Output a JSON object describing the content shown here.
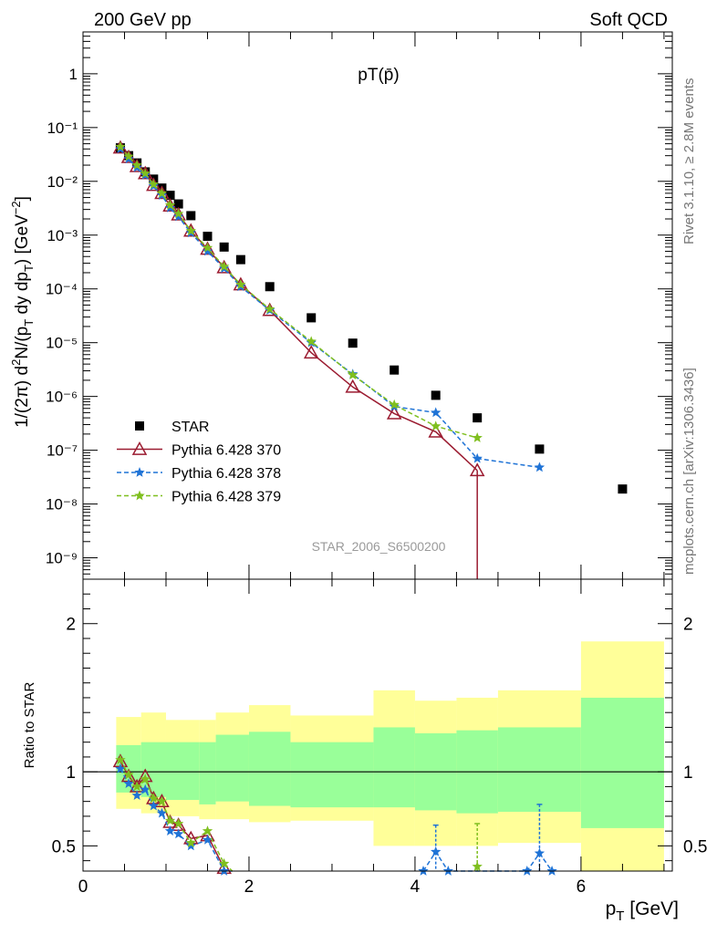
{
  "header": {
    "left": "200 GeV pp",
    "right": "Soft QCD"
  },
  "side_labels": {
    "rivet": "Rivet 3.1.10, ≥ 2.8M events",
    "mcplots": "mcplots.cern.ch [arXiv:1306.3436]"
  },
  "chart_data": [
    {
      "type": "scatter",
      "title": "pT(p̄)",
      "watermark": "STAR_2006_S6500200",
      "ylabel": "1/(2π) d²N/(p_T dy dp_T) [GeV⁻²]",
      "ylabel_parts": {
        "pre": "1/(2π) d",
        "sup2": "2",
        "mid": "N/(p",
        "subT1": "T",
        "mid2": " dy dp",
        "subT2": "T",
        "post": ") [GeV",
        "supm2": "−2",
        "end": "]"
      },
      "yscale": "log",
      "ylim": [
        4e-10,
        6
      ],
      "xlim": [
        0,
        7.1
      ],
      "y_tick_labels": [
        "10⁻⁹",
        "10⁻⁸",
        "10⁻⁷",
        "10⁻⁶",
        "10⁻⁵",
        "10⁻⁴",
        "10⁻³",
        "10⁻²",
        "10⁻¹",
        "1"
      ],
      "legend_position": "lower-left",
      "series": [
        {
          "name": "STAR",
          "color": "#000000",
          "marker": "square",
          "x": [
            0.45,
            0.55,
            0.65,
            0.75,
            0.85,
            0.95,
            1.05,
            1.15,
            1.3,
            1.5,
            1.7,
            1.9,
            2.25,
            2.75,
            3.25,
            3.75,
            4.25,
            4.75,
            5.5,
            6.5
          ],
          "y": [
            0.042,
            0.03,
            0.022,
            0.015,
            0.011,
            0.0075,
            0.0055,
            0.0038,
            0.0023,
            0.00095,
            0.0006,
            0.00035,
            0.00011,
            2.9e-05,
            9.8e-06,
            3.1e-06,
            1.05e-06,
            4e-07,
            1.05e-07,
            1.9e-08
          ]
        },
        {
          "name": "Pythia 6.428 370",
          "color": "#9b1b30",
          "marker": "triangle-open",
          "line": "solid",
          "x": [
            0.45,
            0.55,
            0.65,
            0.75,
            0.85,
            0.95,
            1.05,
            1.15,
            1.3,
            1.5,
            1.7,
            1.9,
            2.25,
            2.75,
            3.25,
            3.75,
            4.25,
            4.75
          ],
          "y": [
            0.042,
            0.028,
            0.019,
            0.014,
            0.0085,
            0.006,
            0.0035,
            0.0024,
            0.0012,
            0.00055,
            0.00025,
            0.00012,
            4e-05,
            6.5e-06,
            1.5e-06,
            4.8e-07,
            2.2e-07,
            4.2e-08
          ]
        },
        {
          "name": "Pythia 6.428 378",
          "color": "#1f73d6",
          "marker": "star",
          "line": "dashed",
          "x": [
            0.45,
            0.55,
            0.65,
            0.75,
            0.85,
            0.95,
            1.05,
            1.15,
            1.3,
            1.5,
            1.7,
            1.9,
            2.25,
            2.75,
            3.25,
            3.75,
            4.25,
            4.75,
            5.5
          ],
          "y": [
            0.04,
            0.026,
            0.018,
            0.013,
            0.0082,
            0.0055,
            0.0032,
            0.0022,
            0.0011,
            0.0005,
            0.00024,
            0.00011,
            4e-05,
            1e-05,
            2.6e-06,
            6.5e-07,
            5e-07,
            7e-08,
            4.8e-08
          ]
        },
        {
          "name": "Pythia 6.428 379",
          "color": "#7fbf1f",
          "marker": "star",
          "line": "dashed",
          "x": [
            0.45,
            0.55,
            0.65,
            0.75,
            0.85,
            0.95,
            1.05,
            1.15,
            1.3,
            1.5,
            1.7,
            1.9,
            2.25,
            2.75,
            3.25,
            3.75,
            4.25,
            4.75
          ],
          "y": [
            0.044,
            0.029,
            0.02,
            0.014,
            0.0088,
            0.006,
            0.0036,
            0.0025,
            0.0012,
            0.00058,
            0.00026,
            0.00012,
            4.2e-05,
            1.05e-05,
            2.5e-06,
            7e-07,
            2.8e-07,
            1.7e-07
          ]
        }
      ]
    },
    {
      "type": "scatter",
      "ylabel": "Ratio to STAR",
      "xlabel": "p_T [GeV]",
      "xlabel_parts": {
        "p": "p",
        "sub": "T",
        "rest": " [GeV]"
      },
      "xlim": [
        0,
        7.1
      ],
      "ylim": [
        0.33,
        2.3
      ],
      "x_tick_labels": [
        "0",
        "2",
        "4",
        "6"
      ],
      "y_tick_labels": [
        "0.5",
        "1",
        "2"
      ],
      "bands": {
        "edges": [
          0.4,
          0.7,
          1.0,
          1.4,
          1.6,
          2.0,
          2.5,
          3.5,
          4.0,
          4.5,
          5.0,
          6.0,
          7.0
        ],
        "inner_low": [
          0.86,
          0.83,
          0.81,
          0.78,
          0.8,
          0.77,
          0.76,
          0.76,
          0.74,
          0.72,
          0.73,
          0.62
        ],
        "inner_high": [
          1.18,
          1.2,
          1.2,
          1.2,
          1.25,
          1.27,
          1.2,
          1.3,
          1.26,
          1.28,
          1.3,
          1.5
        ],
        "outer_low": [
          0.75,
          0.72,
          0.7,
          0.68,
          0.68,
          0.66,
          0.67,
          0.5,
          0.5,
          0.5,
          0.52,
          0.3
        ],
        "outer_high": [
          1.37,
          1.4,
          1.35,
          1.35,
          1.4,
          1.45,
          1.38,
          1.55,
          1.48,
          1.5,
          1.55,
          1.88
        ]
      },
      "series": [
        {
          "name": "Pythia 6.428 370",
          "color": "#9b1b30",
          "x": [
            0.45,
            0.55,
            0.65,
            0.75,
            0.85,
            0.95,
            1.05,
            1.15,
            1.3,
            1.5,
            1.7
          ],
          "y": [
            1.07,
            0.97,
            0.9,
            0.97,
            0.82,
            0.8,
            0.66,
            0.64,
            0.55,
            0.57,
            0.35
          ]
        },
        {
          "name": "Pythia 6.428 378",
          "color": "#1f73d6",
          "x": [
            0.45,
            0.55,
            0.65,
            0.75,
            0.85,
            0.95,
            1.05,
            1.15,
            1.3,
            1.5,
            1.7,
            1.8,
            4.1,
            4.25,
            4.4,
            5.35,
            5.5,
            5.65
          ],
          "y": [
            1.02,
            0.92,
            0.84,
            0.88,
            0.77,
            0.72,
            0.6,
            0.58,
            0.5,
            0.54,
            0.33,
            0.25,
            0.33,
            0.46,
            0.33,
            0.33,
            0.45,
            0.33
          ]
        },
        {
          "name": "Pythia 6.428 379",
          "color": "#7fbf1f",
          "x": [
            0.45,
            0.55,
            0.65,
            0.75,
            0.85,
            0.95,
            1.05,
            1.15,
            1.3,
            1.5,
            1.7,
            1.8,
            4.75
          ],
          "y": [
            1.08,
            0.98,
            0.9,
            0.95,
            0.82,
            0.8,
            0.67,
            0.65,
            0.52,
            0.6,
            0.38,
            0.26,
            0.36
          ]
        }
      ]
    }
  ]
}
